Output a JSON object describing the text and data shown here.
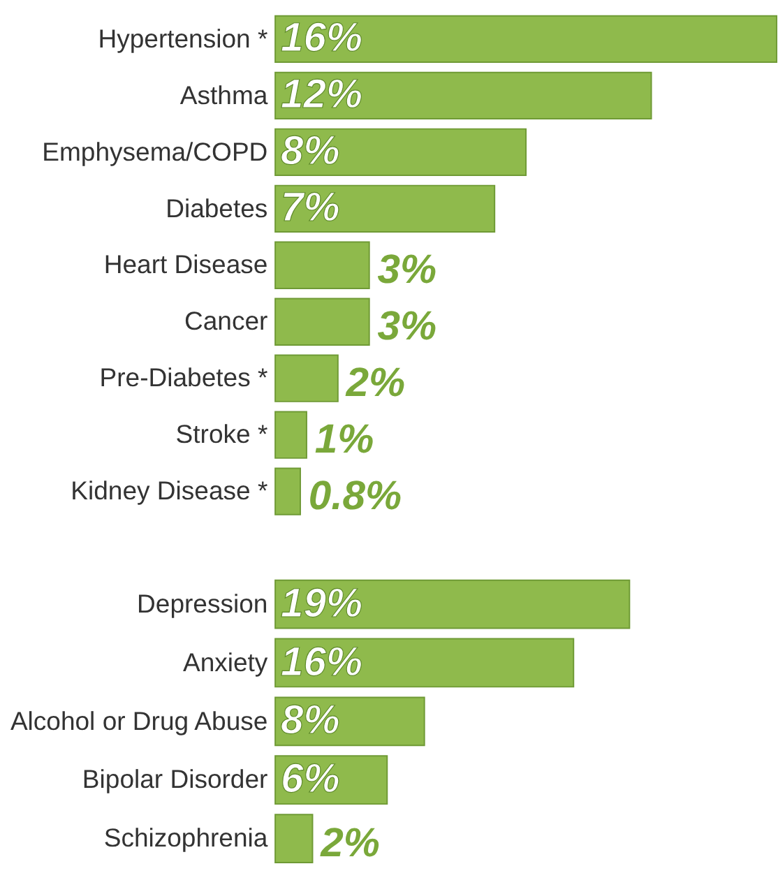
{
  "chart_data": [
    {
      "type": "bar",
      "orientation": "horizontal",
      "categories": [
        "Hypertension *",
        "Asthma",
        "Emphysema/COPD",
        "Diabetes",
        "Heart Disease",
        "Cancer",
        "Pre-Diabetes *",
        "Stroke *",
        "Kidney Disease *"
      ],
      "values": [
        16,
        12,
        8,
        7,
        3,
        3,
        2,
        1,
        0.8
      ],
      "value_labels": [
        "16%",
        "12%",
        "8%",
        "7%",
        "3%",
        "3%",
        "2%",
        "1%",
        "0.8%"
      ],
      "color": "#8fba4c",
      "tick_labels": "y"
    },
    {
      "type": "bar",
      "orientation": "horizontal",
      "categories": [
        "Depression",
        "Anxiety",
        "Alcohol or Drug Abuse",
        "Bipolar Disorder",
        "Schizophrenia"
      ],
      "values": [
        19,
        16,
        8,
        6,
        2
      ],
      "value_labels": [
        "19%",
        "16%",
        "8%",
        "6%",
        "2%"
      ],
      "color": "#8fba4c",
      "tick_labels": "y"
    }
  ]
}
